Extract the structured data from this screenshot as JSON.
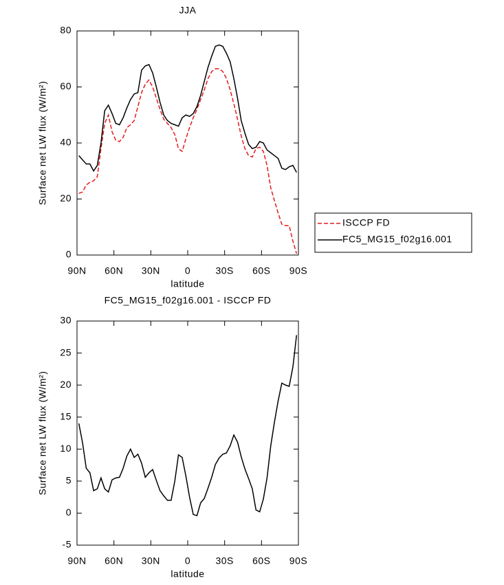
{
  "chart_data": [
    {
      "type": "line",
      "title": "JJA",
      "x_label": "latitude",
      "y_label": "Surface net LW flux (W/m²)",
      "x": [
        88.5,
        85.5,
        82.5,
        79.5,
        76.5,
        73.5,
        70.5,
        67.5,
        64.5,
        61.5,
        58.5,
        55.5,
        52.5,
        49.5,
        46.5,
        43.5,
        40.5,
        37.5,
        34.5,
        31.5,
        28.5,
        25.5,
        22.5,
        19.5,
        16.5,
        13.5,
        10.5,
        7.5,
        4.5,
        1.5,
        -1.5,
        -4.5,
        -7.5,
        -10.5,
        -13.5,
        -16.5,
        -19.5,
        -22.5,
        -25.5,
        -28.5,
        -31.5,
        -34.5,
        -37.5,
        -40.5,
        -43.5,
        -46.5,
        -49.5,
        -52.5,
        -55.5,
        -58.5,
        -61.5,
        -64.5,
        -67.5,
        -70.5,
        -73.5,
        -76.5,
        -79.5,
        -82.5,
        -85.5,
        -88.5
      ],
      "series": [
        {
          "name": "ISCCP FD",
          "color": "#e41a1c",
          "linestyle": "dashed",
          "values": [
            22,
            22.5,
            25,
            26,
            26.5,
            28,
            38,
            47,
            50,
            44,
            41,
            40.5,
            42,
            45.5,
            46.5,
            48,
            53,
            58,
            61,
            62.5,
            60,
            56,
            52,
            48.5,
            47,
            45.5,
            43,
            38,
            37,
            41.5,
            45.5,
            49,
            52,
            55.5,
            59,
            63,
            65.5,
            66.5,
            66.5,
            65.5,
            63,
            59,
            54,
            48.5,
            42.5,
            38,
            35.5,
            35,
            38,
            38.5,
            37,
            32,
            24,
            19.5,
            15,
            11,
            10.5,
            10.5,
            5,
            0.5
          ]
        },
        {
          "name": "FC5_MG15_f02g16.001",
          "color": "#000000",
          "linestyle": "solid",
          "values": [
            35.5,
            34,
            32.5,
            32.5,
            30,
            32,
            40,
            51.5,
            53.5,
            50.5,
            47,
            46.5,
            49,
            52.5,
            55.5,
            57.5,
            58,
            66,
            67.5,
            68,
            65,
            60,
            54.5,
            50,
            48,
            47,
            46.5,
            46,
            49,
            50,
            49.5,
            50.5,
            53,
            57,
            62,
            67,
            71,
            74.5,
            75,
            74.5,
            72,
            69,
            63,
            56,
            48,
            43.5,
            39.5,
            38,
            38.5,
            40.5,
            40,
            37.5,
            36.5,
            35.5,
            34.5,
            31,
            30.5,
            31.5,
            32,
            29.5
          ]
        }
      ],
      "xlim": [
        90,
        -90
      ],
      "ylim": [
        0,
        80
      ],
      "xticks": [
        {
          "value": 90,
          "label": "90N"
        },
        {
          "value": 60,
          "label": "60N"
        },
        {
          "value": 30,
          "label": "30N"
        },
        0,
        {
          "value": -30,
          "label": "30S"
        },
        {
          "value": -60,
          "label": "60S"
        },
        {
          "value": -90,
          "label": "90S"
        }
      ],
      "yticks": [
        0,
        20,
        40,
        60,
        80
      ],
      "legend": "right"
    },
    {
      "type": "line",
      "title": "FC5_MG15_f02g16.001 - ISCCP FD",
      "x_label": "latitude",
      "y_label": "Surface net LW flux (W/m²)",
      "x": [
        88.5,
        85.5,
        82.5,
        79.5,
        76.5,
        73.5,
        70.5,
        67.5,
        64.5,
        61.5,
        58.5,
        55.5,
        52.5,
        49.5,
        46.5,
        43.5,
        40.5,
        37.5,
        34.5,
        31.5,
        28.5,
        25.5,
        22.5,
        19.5,
        16.5,
        13.5,
        10.5,
        7.5,
        4.5,
        1.5,
        -1.5,
        -4.5,
        -7.5,
        -10.5,
        -13.5,
        -16.5,
        -19.5,
        -22.5,
        -25.5,
        -28.5,
        -31.5,
        -34.5,
        -37.5,
        -40.5,
        -43.5,
        -46.5,
        -49.5,
        -52.5,
        -55.5,
        -58.5,
        -61.5,
        -64.5,
        -67.5,
        -70.5,
        -73.5,
        -76.5,
        -79.5,
        -82.5,
        -85.5,
        -88.5
      ],
      "series": [
        {
          "color": "#000000",
          "linestyle": "solid",
          "values": [
            14,
            11,
            7,
            6.3,
            3.5,
            3.8,
            5.5,
            3.8,
            3.3,
            5.2,
            5.5,
            5.6,
            7,
            8.9,
            10,
            8.7,
            9.2,
            7.8,
            5.6,
            6.3,
            6.8,
            5.1,
            3.5,
            2.7,
            2,
            2,
            5,
            9.1,
            8.7,
            5.8,
            2.5,
            -0.2,
            -0.4,
            1.6,
            2.3,
            3.9,
            5.6,
            7.6,
            8.6,
            9.2,
            9.4,
            10.5,
            12.2,
            11.1,
            8.8,
            6.9,
            5.4,
            3.8,
            0.5,
            0.2,
            2.2,
            5.5,
            10.5,
            14.2,
            17.5,
            20.3,
            20,
            19.8,
            22.8,
            27.8
          ]
        }
      ],
      "xlim": [
        90,
        -90
      ],
      "ylim": [
        -5,
        30
      ],
      "xticks": [
        {
          "value": 90,
          "label": "90N"
        },
        {
          "value": 60,
          "label": "60N"
        },
        {
          "value": 30,
          "label": "30N"
        },
        0,
        {
          "value": -30,
          "label": "30S"
        },
        {
          "value": -60,
          "label": "60S"
        },
        {
          "value": -90,
          "label": "90S"
        }
      ],
      "yticks": [
        -5,
        0,
        5,
        10,
        15,
        20,
        25,
        30
      ]
    }
  ]
}
